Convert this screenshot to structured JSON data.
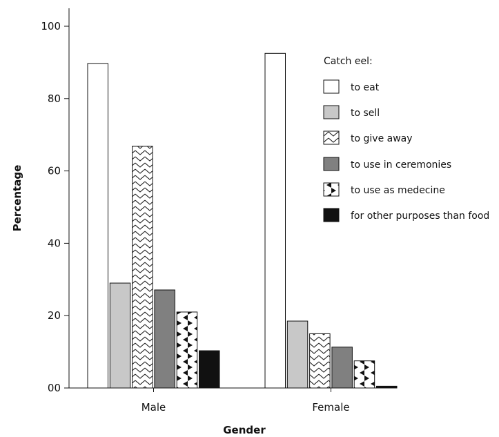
{
  "chart_data": {
    "type": "bar",
    "categories": [
      "Male",
      "Female"
    ],
    "xlabel": "Gender",
    "ylabel": "Percentage",
    "ylim": [
      0,
      100
    ],
    "yticks": [
      0,
      20,
      40,
      60,
      80,
      100
    ],
    "ytick_labels": [
      "00",
      "20",
      "40",
      "60",
      "80",
      "100"
    ],
    "grid": false,
    "legend": {
      "title": "Catch eel:",
      "placement": "top-right"
    },
    "series": [
      {
        "name": "to eat",
        "values": [
          89.7,
          92.5
        ],
        "fill": "white"
      },
      {
        "name": "to sell",
        "values": [
          29.0,
          18.5
        ],
        "fill": "#c8c8c8"
      },
      {
        "name": "to give away",
        "values": [
          66.8,
          15.0
        ],
        "fill": "zigzag"
      },
      {
        "name": "to use in ceremonies",
        "values": [
          27.1,
          11.3
        ],
        "fill": "#808080"
      },
      {
        "name": "to use as medecine",
        "values": [
          21.0,
          7.5
        ],
        "fill": "triangles"
      },
      {
        "name": "for other purposes than food",
        "values": [
          10.3,
          0.5
        ],
        "fill": "#111111"
      }
    ]
  }
}
